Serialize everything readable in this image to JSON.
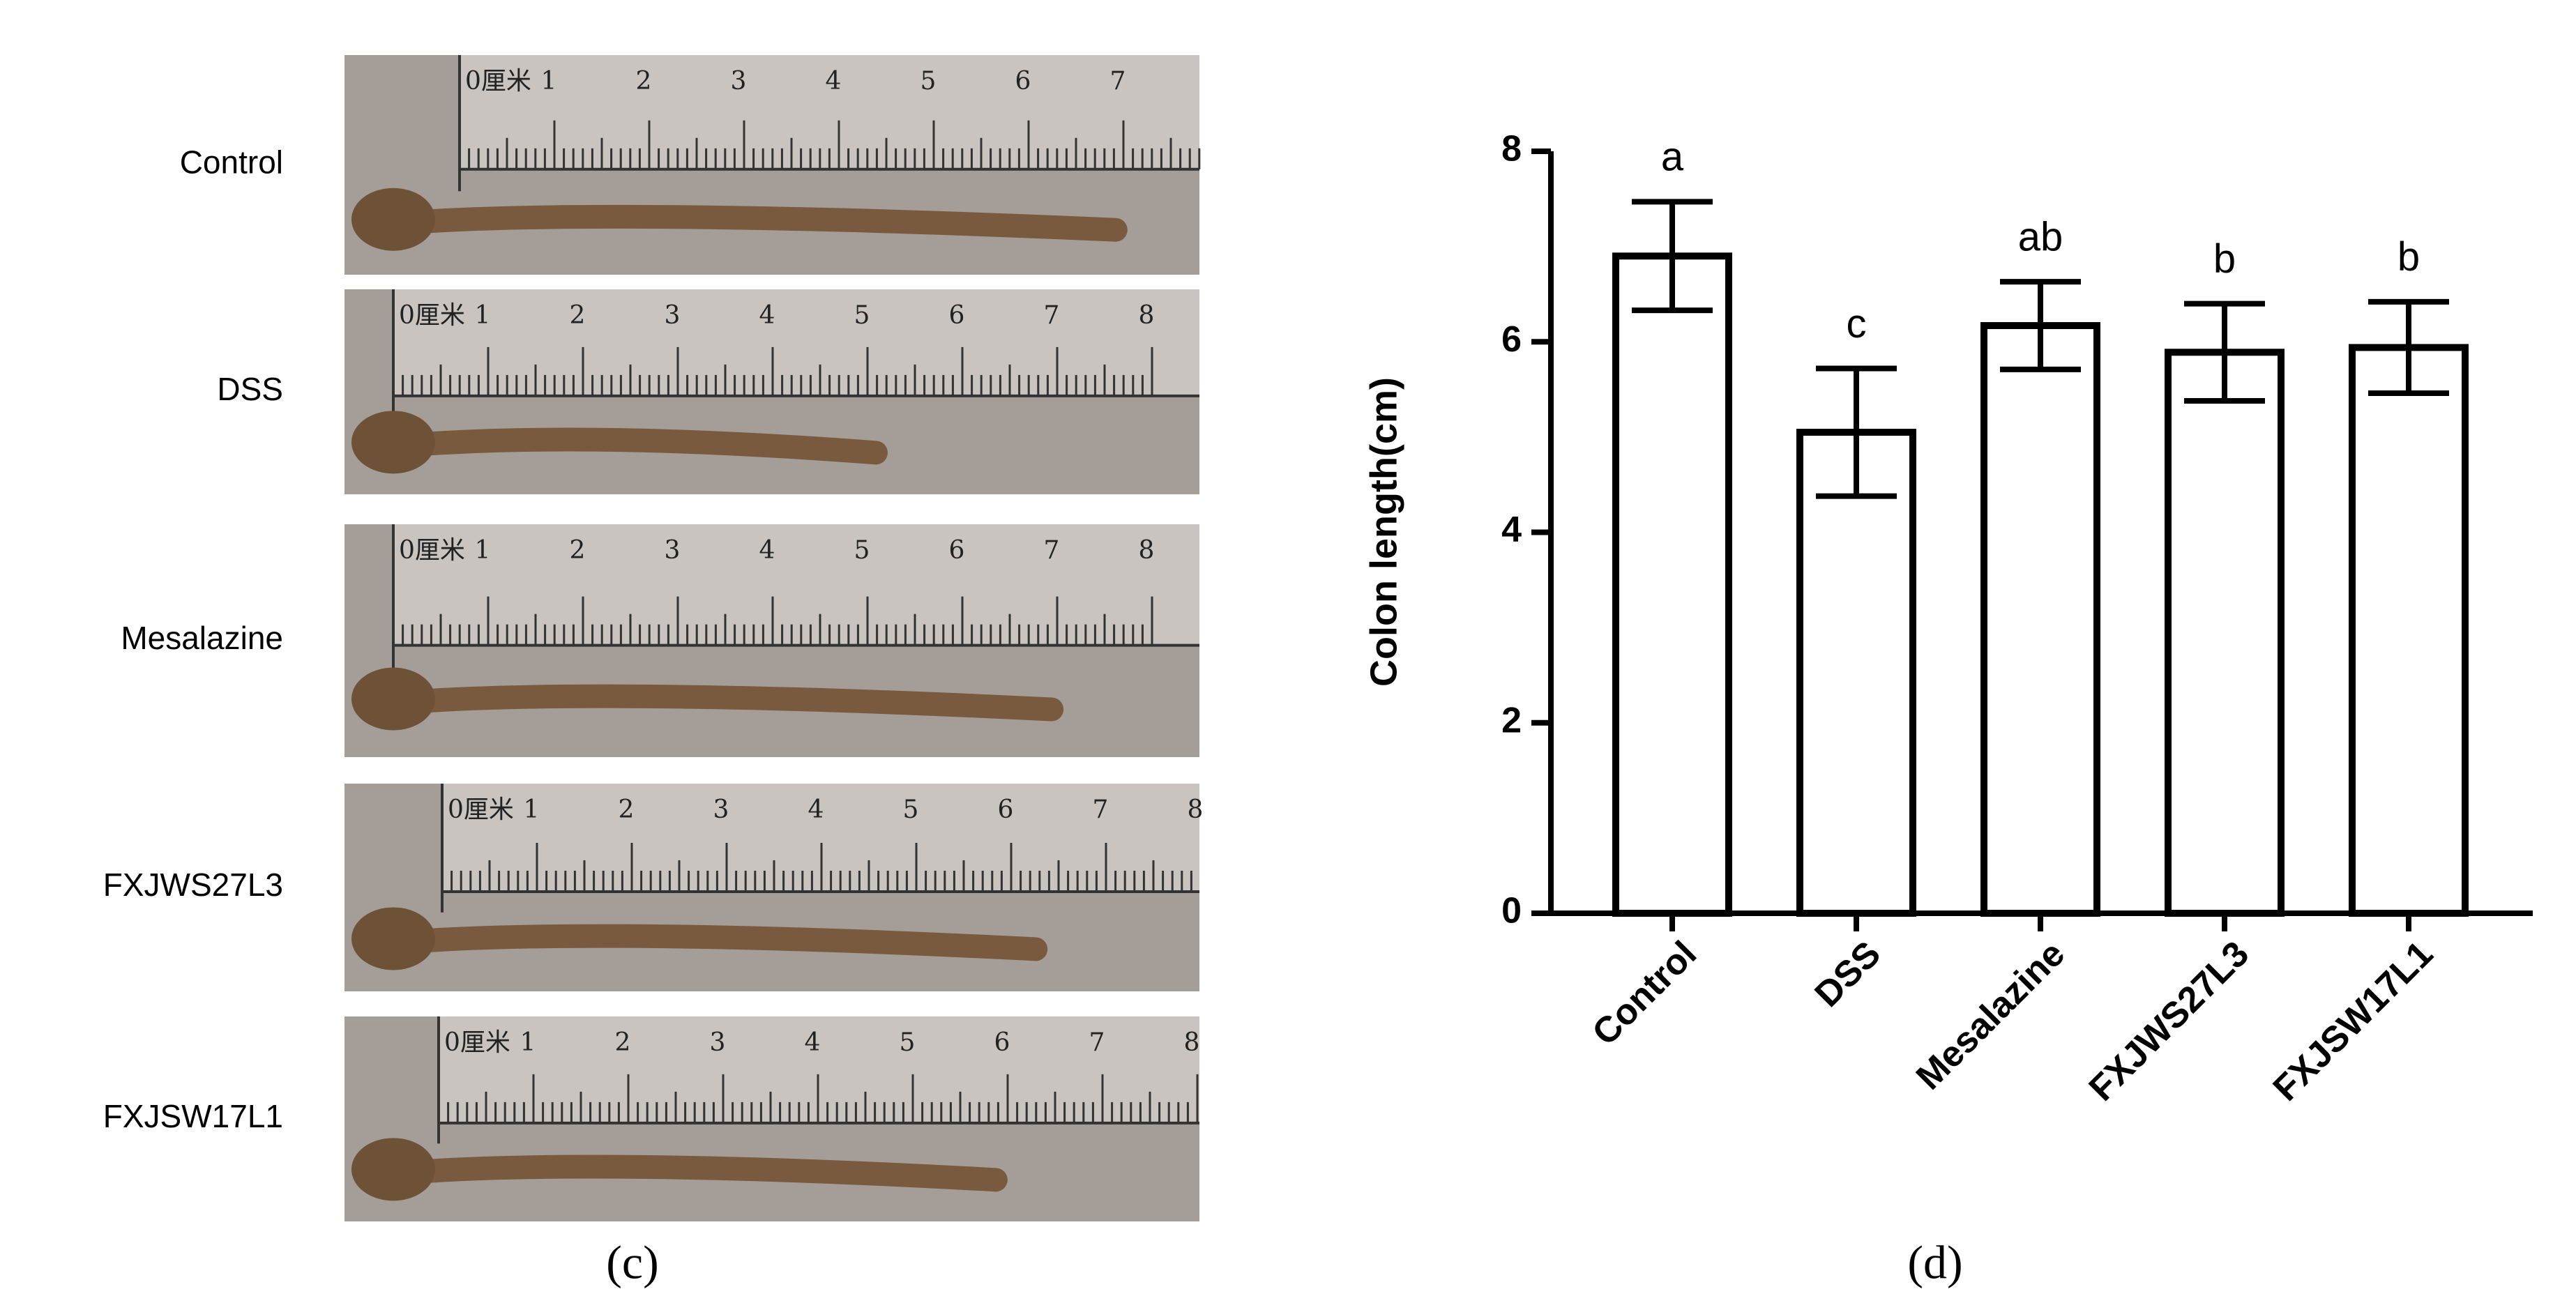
{
  "photo_panel": {
    "labels": [
      "Control",
      "DSS",
      "Mesalazine",
      "FXJWS27L3",
      "FXJSW17L1"
    ],
    "ruler_labels": [
      "0厘米",
      "1",
      "2",
      "3",
      "4",
      "5",
      "6",
      "7",
      "8"
    ],
    "caption": "(c)"
  },
  "chart_data": {
    "type": "bar",
    "ylabel": "Colon length(cm)",
    "categories": [
      "Control",
      "DSS",
      "Mesalazine",
      "FXJWS27L3",
      "FXJSW17L1"
    ],
    "values": [
      6.9,
      5.05,
      6.17,
      5.89,
      5.94
    ],
    "errors": [
      0.57,
      0.67,
      0.46,
      0.51,
      0.48
    ],
    "annotations": [
      "a",
      "c",
      "ab",
      "b",
      "b"
    ],
    "color": "#ffffff",
    "ylim": [
      0,
      8
    ],
    "yticks": [
      0,
      2,
      4,
      6,
      8
    ],
    "caption": "(d)"
  }
}
